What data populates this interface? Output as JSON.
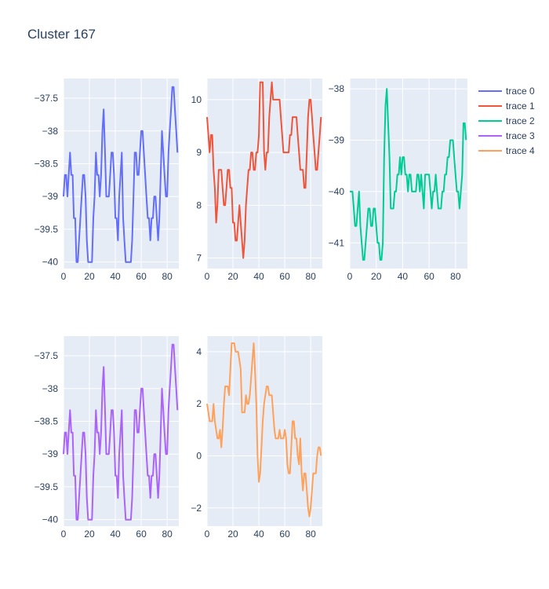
{
  "title": "Cluster 167",
  "chart_data": {
    "type": "line",
    "title": "Cluster 167",
    "grid": true,
    "legend_position": "top-right",
    "legend": [
      "trace 0",
      "trace 1",
      "trace 2",
      "trace 3",
      "trace 4"
    ],
    "subplots": [
      {
        "name": "trace 0",
        "color": "#636efa",
        "xlim": [
          0,
          89
        ],
        "ylim": [
          -40.1,
          -37.2
        ],
        "xticks": [
          0,
          20,
          40,
          60,
          80
        ],
        "yticks": [
          -37.5,
          -38,
          -38.5,
          -39,
          -39.5,
          -40
        ],
        "yticklabels": [
          "−37.5",
          "−38",
          "−38.5",
          "−39",
          "−39.5",
          "−40"
        ],
        "x": [
          0,
          1,
          2,
          3,
          4,
          5,
          6,
          7,
          8,
          9,
          10,
          11,
          12,
          13,
          14,
          15,
          16,
          17,
          18,
          19,
          20,
          21,
          22,
          23,
          24,
          25,
          26,
          27,
          28,
          29,
          30,
          31,
          32,
          33,
          34,
          35,
          36,
          37,
          38,
          39,
          40,
          41,
          42,
          43,
          44,
          45,
          46,
          47,
          48,
          49,
          50,
          51,
          52,
          53,
          54,
          55,
          56,
          57,
          58,
          59,
          60,
          61,
          62,
          63,
          64,
          65,
          66,
          67,
          68,
          69,
          70,
          71,
          72,
          73,
          74,
          75,
          76,
          77,
          78,
          79,
          80,
          81,
          82,
          83,
          84,
          85,
          86,
          87,
          88
        ],
        "y": [
          -39,
          -38.67,
          -38.67,
          -39,
          -38.67,
          -38.33,
          -38.67,
          -38.67,
          -39.33,
          -39.33,
          -40,
          -40,
          -39.67,
          -39.33,
          -39,
          -38.67,
          -38.67,
          -39,
          -39.67,
          -40,
          -40,
          -40,
          -40,
          -39.33,
          -39,
          -38.33,
          -38.67,
          -38.67,
          -39,
          -38.67,
          -38,
          -37.67,
          -38.33,
          -39,
          -39,
          -39,
          -38.67,
          -38.33,
          -38.33,
          -38.67,
          -39.33,
          -39.33,
          -39.67,
          -39,
          -38.67,
          -38.33,
          -39.33,
          -39.67,
          -40,
          -40,
          -40,
          -40,
          -40,
          -39.67,
          -39,
          -38.33,
          -38.33,
          -38.67,
          -38.67,
          -38.33,
          -38,
          -38,
          -38.33,
          -38.67,
          -39,
          -39.33,
          -39.33,
          -39.67,
          -39.33,
          -39.33,
          -39,
          -39,
          -39.33,
          -39.67,
          -39.33,
          -38.67,
          -38,
          -38.33,
          -38.67,
          -39,
          -39,
          -38.33,
          -38,
          -37.67,
          -37.33,
          -37.33,
          -37.67,
          -38,
          -38.33
        ]
      },
      {
        "name": "trace 1",
        "color": "#EF553B",
        "xlim": [
          0,
          89
        ],
        "ylim": [
          6.8,
          10.4
        ],
        "xticks": [
          0,
          20,
          40,
          60,
          80
        ],
        "yticks": [
          7,
          8,
          9,
          10
        ],
        "yticklabels": [
          "7",
          "8",
          "9",
          "10"
        ],
        "x": [
          0,
          1,
          2,
          3,
          4,
          5,
          6,
          7,
          8,
          9,
          10,
          11,
          12,
          13,
          14,
          15,
          16,
          17,
          18,
          19,
          20,
          21,
          22,
          23,
          24,
          25,
          26,
          27,
          28,
          29,
          30,
          31,
          32,
          33,
          34,
          35,
          36,
          37,
          38,
          39,
          40,
          41,
          42,
          43,
          44,
          45,
          46,
          47,
          48,
          49,
          50,
          51,
          52,
          53,
          54,
          55,
          56,
          57,
          58,
          59,
          60,
          61,
          62,
          63,
          64,
          65,
          66,
          67,
          68,
          69,
          70,
          71,
          72,
          73,
          74,
          75,
          76,
          77,
          78,
          79,
          80,
          81,
          82,
          83,
          84,
          85,
          86,
          87,
          88
        ],
        "y": [
          9.67,
          9.33,
          9,
          9.33,
          9.33,
          8.67,
          8.33,
          7.67,
          8,
          8.67,
          8.67,
          8.67,
          8.33,
          8,
          8,
          8.33,
          8.67,
          8.67,
          8.33,
          8.33,
          7.67,
          7.67,
          7.33,
          7.33,
          7.67,
          8,
          7.67,
          7.33,
          7,
          7.33,
          8,
          8.33,
          8.67,
          8.67,
          9,
          9,
          8.67,
          8.67,
          9,
          9,
          9.33,
          10.33,
          10.33,
          10.33,
          9,
          8.67,
          9,
          9,
          9.67,
          10,
          10.33,
          10,
          10,
          10,
          10,
          10,
          10,
          9.67,
          9.33,
          9,
          9,
          9,
          9,
          9,
          9.33,
          9.33,
          9.67,
          9.67,
          9.67,
          9.67,
          9.33,
          9,
          8.67,
          8.67,
          8.67,
          8.33,
          8.33,
          9,
          9.67,
          10,
          10,
          9.67,
          9.33,
          9,
          8.67,
          8.67,
          9,
          9.33,
          9.67
        ]
      },
      {
        "name": "trace 2",
        "color": "#00cc96",
        "xlim": [
          0,
          89
        ],
        "ylim": [
          -41.5,
          -37.8
        ],
        "xticks": [
          0,
          20,
          40,
          60,
          80
        ],
        "yticks": [
          -38,
          -39,
          -40,
          -41
        ],
        "yticklabels": [
          "−38",
          "−39",
          "−40",
          "−41"
        ],
        "x": [
          0,
          1,
          2,
          3,
          4,
          5,
          6,
          7,
          8,
          9,
          10,
          11,
          12,
          13,
          14,
          15,
          16,
          17,
          18,
          19,
          20,
          21,
          22,
          23,
          24,
          25,
          26,
          27,
          28,
          29,
          30,
          31,
          32,
          33,
          34,
          35,
          36,
          37,
          38,
          39,
          40,
          41,
          42,
          43,
          44,
          45,
          46,
          47,
          48,
          49,
          50,
          51,
          52,
          53,
          54,
          55,
          56,
          57,
          58,
          59,
          60,
          61,
          62,
          63,
          64,
          65,
          66,
          67,
          68,
          69,
          70,
          71,
          72,
          73,
          74,
          75,
          76,
          77,
          78,
          79,
          80,
          81,
          82,
          83,
          84,
          85,
          86,
          87,
          88
        ],
        "y": [
          -40,
          -40,
          -40,
          -40.33,
          -40.67,
          -40.67,
          -40.33,
          -40,
          -40.67,
          -41,
          -41.33,
          -41.33,
          -41,
          -40.67,
          -40.33,
          -40.33,
          -40.67,
          -40.67,
          -40.33,
          -40.33,
          -40.67,
          -41,
          -41,
          -41.33,
          -41.33,
          -41,
          -39.33,
          -38.33,
          -38,
          -38.67,
          -39.33,
          -40.33,
          -40.33,
          -40.33,
          -40,
          -40,
          -39.67,
          -39.67,
          -39.33,
          -39.67,
          -39.33,
          -39.33,
          -39.67,
          -39.67,
          -40,
          -39.67,
          -39.67,
          -40,
          -40,
          -40,
          -40,
          -39.67,
          -39.67,
          -40,
          -39.67,
          -40,
          -40.33,
          -39.67,
          -39.67,
          -39.67,
          -39.67,
          -40,
          -40.33,
          -40,
          -40,
          -39.67,
          -40,
          -40.33,
          -40.33,
          -40.33,
          -40,
          -40,
          -39.67,
          -39.67,
          -39.33,
          -39.33,
          -39,
          -39,
          -39,
          -39.33,
          -39.67,
          -40,
          -40,
          -40.33,
          -40,
          -39.67,
          -38.67,
          -38.67,
          -39
        ]
      },
      {
        "name": "trace 3",
        "color": "#ab63fa",
        "xlim": [
          0,
          89
        ],
        "ylim": [
          -40.1,
          -37.2
        ],
        "xticks": [
          0,
          20,
          40,
          60,
          80
        ],
        "yticks": [
          -37.5,
          -38,
          -38.5,
          -39,
          -39.5,
          -40
        ],
        "yticklabels": [
          "−37.5",
          "−38",
          "−38.5",
          "−39",
          "−39.5",
          "−40"
        ],
        "x": [
          0,
          1,
          2,
          3,
          4,
          5,
          6,
          7,
          8,
          9,
          10,
          11,
          12,
          13,
          14,
          15,
          16,
          17,
          18,
          19,
          20,
          21,
          22,
          23,
          24,
          25,
          26,
          27,
          28,
          29,
          30,
          31,
          32,
          33,
          34,
          35,
          36,
          37,
          38,
          39,
          40,
          41,
          42,
          43,
          44,
          45,
          46,
          47,
          48,
          49,
          50,
          51,
          52,
          53,
          54,
          55,
          56,
          57,
          58,
          59,
          60,
          61,
          62,
          63,
          64,
          65,
          66,
          67,
          68,
          69,
          70,
          71,
          72,
          73,
          74,
          75,
          76,
          77,
          78,
          79,
          80,
          81,
          82,
          83,
          84,
          85,
          86,
          87,
          88
        ],
        "y": [
          -39,
          -38.67,
          -38.67,
          -39,
          -38.67,
          -38.33,
          -38.67,
          -38.67,
          -39.33,
          -39.33,
          -40,
          -40,
          -39.67,
          -39.33,
          -39,
          -38.67,
          -38.67,
          -39,
          -39.67,
          -40,
          -40,
          -40,
          -40,
          -39.33,
          -39,
          -38.33,
          -38.67,
          -38.67,
          -39,
          -38.67,
          -38,
          -37.67,
          -38.33,
          -39,
          -39,
          -39,
          -38.67,
          -38.33,
          -38.33,
          -38.67,
          -39.33,
          -39.33,
          -39.67,
          -39,
          -38.67,
          -38.33,
          -39.33,
          -39.67,
          -40,
          -40,
          -40,
          -40,
          -40,
          -39.67,
          -39,
          -38.33,
          -38.33,
          -38.67,
          -38.67,
          -38.33,
          -38,
          -38,
          -38.33,
          -38.67,
          -39,
          -39.33,
          -39.33,
          -39.67,
          -39.33,
          -39.33,
          -39,
          -39,
          -39.33,
          -39.67,
          -39.33,
          -38.67,
          -38,
          -38.33,
          -38.67,
          -39,
          -39,
          -38.33,
          -38,
          -37.67,
          -37.33,
          -37.33,
          -37.67,
          -38,
          -38.33
        ]
      },
      {
        "name": "trace 4",
        "color": "#FFA15A",
        "xlim": [
          0,
          89
        ],
        "ylim": [
          -2.7,
          4.6
        ],
        "xticks": [
          0,
          20,
          40,
          60,
          80
        ],
        "yticks": [
          4,
          2,
          0,
          -2
        ],
        "yticklabels": [
          "4",
          "2",
          "0",
          "−2"
        ],
        "x": [
          0,
          1,
          2,
          3,
          4,
          5,
          6,
          7,
          8,
          9,
          10,
          11,
          12,
          13,
          14,
          15,
          16,
          17,
          18,
          19,
          20,
          21,
          22,
          23,
          24,
          25,
          26,
          27,
          28,
          29,
          30,
          31,
          32,
          33,
          34,
          35,
          36,
          37,
          38,
          39,
          40,
          41,
          42,
          43,
          44,
          45,
          46,
          47,
          48,
          49,
          50,
          51,
          52,
          53,
          54,
          55,
          56,
          57,
          58,
          59,
          60,
          61,
          62,
          63,
          64,
          65,
          66,
          67,
          68,
          69,
          70,
          71,
          72,
          73,
          74,
          75,
          76,
          77,
          78,
          79,
          80,
          81,
          82,
          83,
          84,
          85,
          86,
          87,
          88
        ],
        "y": [
          2,
          1.67,
          1.33,
          1.33,
          1.33,
          2,
          1.33,
          1,
          0.67,
          0.67,
          1,
          0.33,
          1,
          2,
          2.67,
          2.67,
          2.67,
          2.33,
          3.33,
          4.33,
          4.33,
          4.33,
          4,
          4,
          4,
          3.67,
          3.33,
          1.67,
          1.67,
          1.67,
          2.33,
          2,
          2,
          2.33,
          3,
          3.67,
          4.33,
          3.33,
          2,
          0,
          -1,
          -0.67,
          0.33,
          1.33,
          2,
          2.33,
          2.67,
          2.67,
          2.33,
          2.33,
          2.33,
          1.67,
          1,
          0.67,
          0.67,
          0.67,
          1,
          0.67,
          0.67,
          0.67,
          1,
          0.67,
          -0.33,
          -0.67,
          -0.67,
          0.33,
          1.33,
          1.33,
          0.67,
          0.67,
          0,
          -0.33,
          0.67,
          -0.67,
          -1.33,
          -0.67,
          -0.67,
          -1.33,
          -2,
          -2.33,
          -2,
          -1.33,
          -0.67,
          -0.67,
          -0.67,
          0,
          0.33,
          0.33,
          0
        ]
      }
    ]
  }
}
